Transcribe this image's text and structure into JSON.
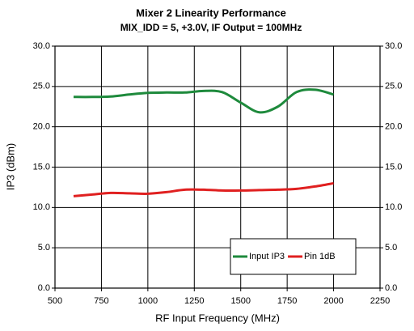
{
  "chart_data": {
    "type": "line",
    "title": "Mixer 2 Linearity Performance",
    "subtitle": "MIX_IDD = 5, +3.0V, IF Output = 100MHz",
    "x_label": "RF Input Frequency (MHz)",
    "y_label": "IP3 (dBm)",
    "x": [
      600,
      700,
      800,
      900,
      1000,
      1100,
      1200,
      1300,
      1400,
      1500,
      1600,
      1700,
      1800,
      1900,
      2000
    ],
    "series": [
      {
        "name": "Input IP3",
        "color": "#1e8a3c",
        "values": [
          23.7,
          23.7,
          23.75,
          24.0,
          24.2,
          24.25,
          24.25,
          24.45,
          24.3,
          23.0,
          21.8,
          22.5,
          24.3,
          24.6,
          24.0
        ]
      },
      {
        "name": "Pin 1dB",
        "color": "#e02020",
        "values": [
          11.4,
          11.6,
          11.8,
          11.75,
          11.7,
          11.9,
          12.2,
          12.2,
          12.1,
          12.1,
          12.15,
          12.2,
          12.3,
          12.6,
          13.0
        ]
      }
    ],
    "xlim": [
      500,
      2250
    ],
    "xticks": [
      500,
      750,
      1000,
      1250,
      1500,
      1750,
      2000,
      2250
    ],
    "ylim": [
      0,
      30
    ],
    "yticks": [
      {
        "value": 0,
        "label": "0.0"
      },
      {
        "value": 5,
        "label": "5.0"
      },
      {
        "value": 10,
        "label": "10.0"
      },
      {
        "value": 15,
        "label": "15.0"
      },
      {
        "value": 20,
        "label": "20.0"
      },
      {
        "value": 25,
        "label": "25.0"
      },
      {
        "value": 30,
        "label": "30.0"
      }
    ],
    "y2lim": [
      0,
      30
    ],
    "y2ticks": [
      {
        "value": 0,
        "label": "0.0"
      },
      {
        "value": 5,
        "label": "5.0"
      },
      {
        "value": 10,
        "label": "10.0"
      },
      {
        "value": 15,
        "label": "15.0"
      },
      {
        "value": 20,
        "label": "20.0"
      },
      {
        "value": 25,
        "label": "25.0"
      },
      {
        "value": 30,
        "label": "30.0"
      }
    ],
    "grid": true,
    "legend": "lower right"
  }
}
